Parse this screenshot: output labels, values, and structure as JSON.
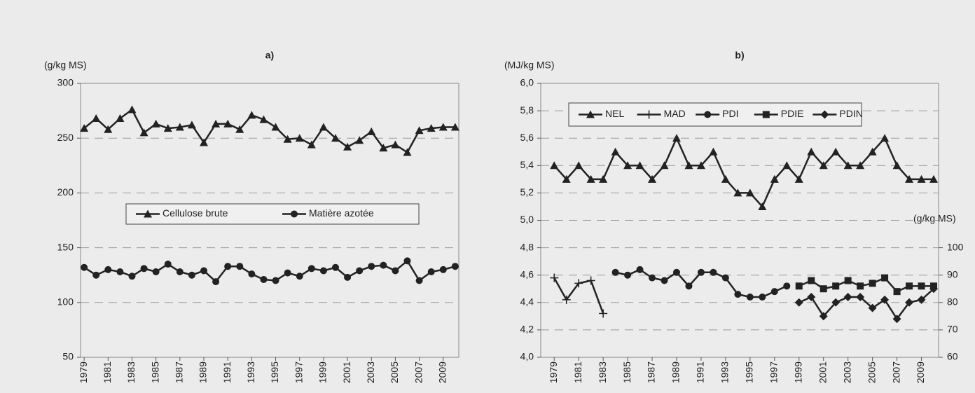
{
  "chart_data": [
    {
      "type": "line",
      "title": "a)",
      "y_label": "(g/kg MS)",
      "x": [
        1979,
        1980,
        1981,
        1982,
        1983,
        1984,
        1985,
        1986,
        1987,
        1988,
        1989,
        1990,
        1991,
        1992,
        1993,
        1994,
        1995,
        1996,
        1997,
        1998,
        1999,
        2000,
        2001,
        2002,
        2003,
        2004,
        2005,
        2006,
        2007,
        2008,
        2009,
        2010
      ],
      "xlim": [
        1978.7,
        2010.3
      ],
      "xticks": [
        1979,
        1981,
        1983,
        1985,
        1987,
        1989,
        1991,
        1993,
        1995,
        1997,
        1999,
        2001,
        2003,
        2005,
        2007,
        2009
      ],
      "ylim": [
        50,
        300
      ],
      "yticks": [
        50,
        100,
        150,
        200,
        250,
        300
      ],
      "grid": true,
      "legend": "center",
      "series": [
        {
          "name": "Cellulose brute",
          "color": "#222222",
          "marker": "triangle",
          "values": [
            259,
            268,
            258,
            268,
            276,
            255,
            263,
            259,
            260,
            262,
            246,
            263,
            263,
            258,
            271,
            267,
            260,
            249,
            250,
            244,
            260,
            250,
            242,
            248,
            256,
            241,
            244,
            237,
            257,
            259,
            260,
            260
          ]
        },
        {
          "name": "Matière azotée",
          "color": "#222222",
          "marker": "circle",
          "values": [
            132,
            125,
            130,
            128,
            124,
            131,
            128,
            135,
            128,
            125,
            129,
            119,
            133,
            133,
            126,
            121,
            120,
            127,
            124,
            131,
            129,
            132,
            123,
            129,
            133,
            134,
            129,
            138,
            120,
            128,
            130,
            133
          ]
        }
      ]
    },
    {
      "type": "line",
      "title": "b)",
      "y_label": "(MJ/kg MS)",
      "y2_label": "(g/kg MS)",
      "x": [
        1979,
        1980,
        1981,
        1982,
        1983,
        1984,
        1985,
        1986,
        1987,
        1988,
        1989,
        1990,
        1991,
        1992,
        1993,
        1994,
        1995,
        1996,
        1997,
        1998,
        1999,
        2000,
        2001,
        2002,
        2003,
        2004,
        2005,
        2006,
        2007,
        2008,
        2009,
        2010
      ],
      "xlim": [
        1977.9,
        2010.4
      ],
      "xticks": [
        1979,
        1981,
        1983,
        1985,
        1987,
        1989,
        1991,
        1993,
        1995,
        1997,
        1999,
        2001,
        2003,
        2005,
        2007,
        2009
      ],
      "ylim": [
        4,
        6
      ],
      "yticks": [
        {
          "value": 4,
          "label": "4,0"
        },
        {
          "value": 4.2,
          "label": "4,2"
        },
        {
          "value": 4.4,
          "label": "4,4"
        },
        {
          "value": 4.6,
          "label": "4,6"
        },
        {
          "value": 4.8,
          "label": "4,8"
        },
        {
          "value": 5,
          "label": "5,0"
        },
        {
          "value": 5.2,
          "label": "5,2"
        },
        {
          "value": 5.4,
          "label": "5,4"
        },
        {
          "value": 5.6,
          "label": "5,6"
        },
        {
          "value": 5.8,
          "label": "5,8"
        },
        {
          "value": 6,
          "label": "6,0"
        }
      ],
      "y2lim": [
        60,
        160
      ],
      "y2ticks": [
        60,
        70,
        80,
        90,
        100
      ],
      "grid": true,
      "legend": "upper left",
      "series": [
        {
          "name": "NEL",
          "color": "#222222",
          "marker": "triangle",
          "values": [
            5.4,
            5.3,
            5.4,
            5.3,
            5.3,
            5.5,
            5.4,
            5.4,
            5.3,
            5.4,
            5.6,
            5.4,
            5.4,
            5.5,
            5.3,
            5.2,
            5.2,
            5.1,
            5.3,
            5.4,
            5.3,
            5.5,
            5.4,
            5.5,
            5.4,
            5.4,
            5.5,
            5.6,
            5.4,
            5.3,
            5.3,
            5.3
          ]
        },
        {
          "name": "MAD",
          "color": "#222222",
          "marker": "plus",
          "axis": "y2",
          "values": [
            89,
            81,
            87,
            88,
            76,
            null,
            null,
            null,
            null,
            null,
            null,
            null,
            null,
            null,
            null,
            null,
            null,
            null,
            null,
            null,
            null,
            null,
            null,
            null,
            null,
            null,
            null,
            null,
            null,
            null,
            null,
            null
          ]
        },
        {
          "name": "PDI",
          "color": "#222222",
          "marker": "circle",
          "axis": "y2",
          "values": [
            null,
            null,
            null,
            null,
            null,
            91,
            90,
            92,
            89,
            88,
            91,
            86,
            91,
            91,
            89,
            83,
            82,
            82,
            84,
            86,
            null,
            null,
            null,
            null,
            null,
            null,
            null,
            null,
            null,
            null,
            null,
            null
          ]
        },
        {
          "name": "PDIE",
          "color": "#222222",
          "marker": "square",
          "axis": "y2",
          "values": [
            null,
            null,
            null,
            null,
            null,
            null,
            null,
            null,
            null,
            null,
            null,
            null,
            null,
            null,
            null,
            null,
            null,
            null,
            null,
            null,
            86,
            88,
            85,
            86,
            88,
            86,
            87,
            89,
            84,
            86,
            86,
            86
          ]
        },
        {
          "name": "PDIN",
          "color": "#222222",
          "marker": "diamond",
          "axis": "y2",
          "values": [
            null,
            null,
            null,
            null,
            null,
            null,
            null,
            null,
            null,
            null,
            null,
            null,
            null,
            null,
            null,
            null,
            null,
            null,
            null,
            null,
            80,
            82,
            75,
            80,
            82,
            82,
            78,
            81,
            74,
            80,
            81,
            85
          ]
        }
      ]
    }
  ]
}
